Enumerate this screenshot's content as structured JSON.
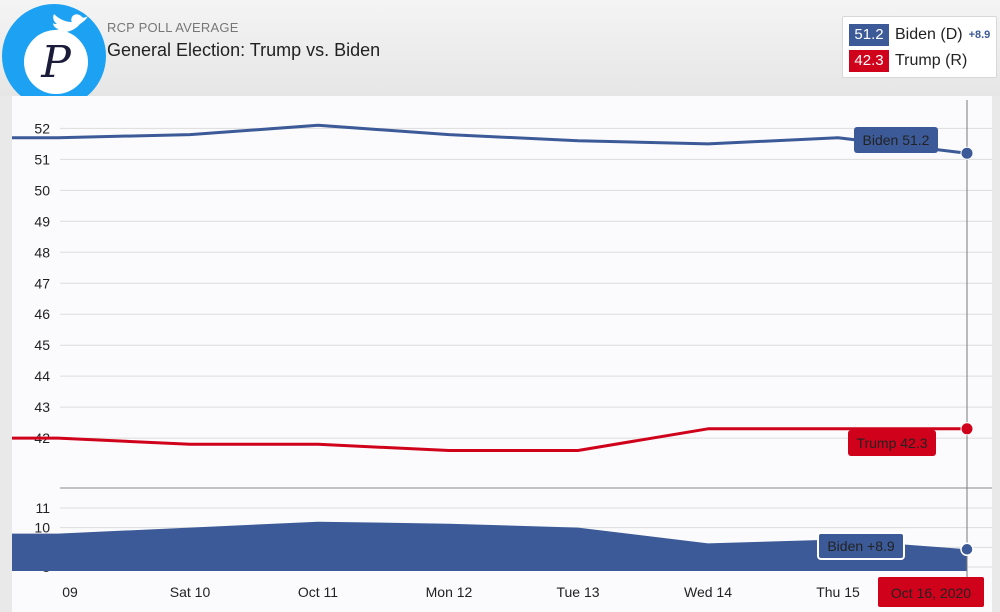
{
  "header": {
    "kicker": "RCP POLL AVERAGE",
    "title": "General Election: Trump vs. Biden",
    "logo_letter": "P"
  },
  "legend": {
    "biden": {
      "value": "51.2",
      "name": "Biden (D)",
      "spread": "+8.9"
    },
    "trump": {
      "value": "42.3",
      "name": "Trump (R)"
    }
  },
  "colors": {
    "biden": "#3c5a98",
    "trump": "#d0021b",
    "grid": "#dcdcdc",
    "logo": "#1da1f2"
  },
  "chart_data": [
    {
      "type": "line",
      "title": "General Election: Trump vs. Biden",
      "categories": [
        "09",
        "Sat 10",
        "Oct 11",
        "Mon 12",
        "Tue 13",
        "Wed 14",
        "Thu 15",
        "Oct 16, 2020"
      ],
      "series": [
        {
          "name": "Biden",
          "values": [
            51.7,
            51.8,
            52.1,
            51.8,
            51.6,
            51.5,
            51.7,
            51.2
          ]
        },
        {
          "name": "Trump",
          "values": [
            42.0,
            41.8,
            41.8,
            41.6,
            41.6,
            42.3,
            42.3,
            42.3
          ]
        }
      ],
      "yticks": [
        42,
        43,
        44,
        45,
        46,
        47,
        48,
        49,
        50,
        51,
        52
      ],
      "ylim": [
        41.1,
        52.4
      ],
      "grid": true,
      "labels": [
        {
          "series": "Biden",
          "text": "Biden 51.2"
        },
        {
          "series": "Trump",
          "text": "Trump 42.3"
        }
      ],
      "highlighted_x": "Oct 16, 2020"
    },
    {
      "type": "area",
      "categories": [
        "09",
        "Sat 10",
        "Oct 11",
        "Mon 12",
        "Tue 13",
        "Wed 14",
        "Thu 15",
        "Oct 16, 2020"
      ],
      "series": [
        {
          "name": "Biden spread",
          "values": [
            9.7,
            10.0,
            10.3,
            10.2,
            10.0,
            9.2,
            9.4,
            8.9
          ]
        }
      ],
      "yticks": [
        8,
        9,
        10,
        11
      ],
      "ylim": [
        7.8,
        11.2
      ],
      "labels": [
        {
          "series": "Biden spread",
          "text": "Biden +8.9"
        }
      ]
    }
  ]
}
